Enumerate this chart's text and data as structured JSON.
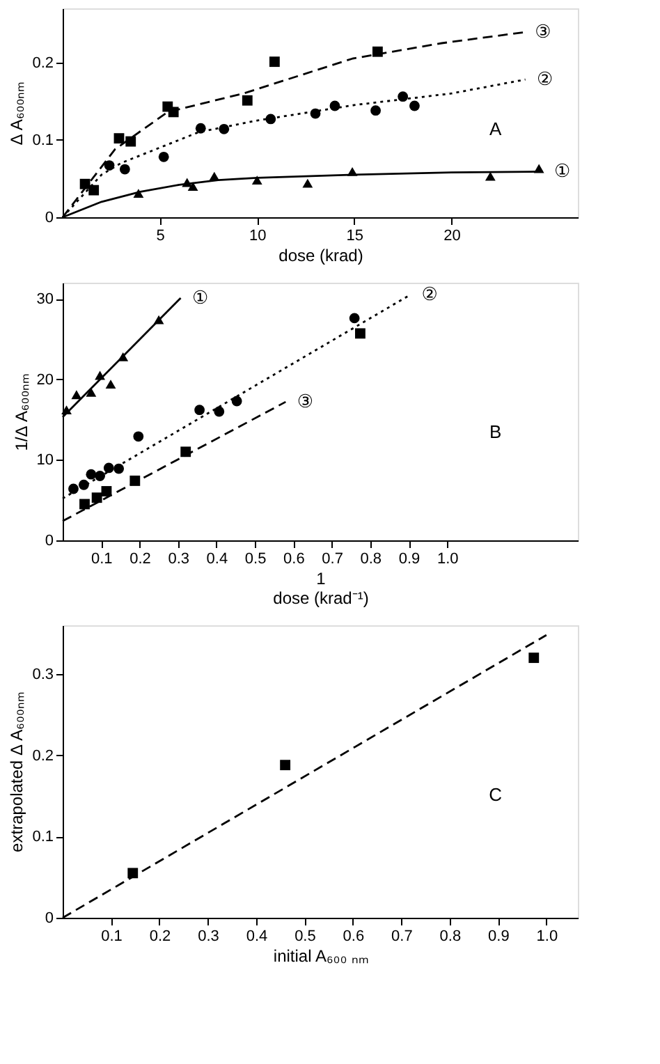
{
  "chart_data": [
    {
      "type": "scatter",
      "xlabel": "dose (krad)",
      "ylabel": "Δ A₆₀₀ₙₘ",
      "xlim": [
        0,
        26.5
      ],
      "ylim": [
        0,
        0.27
      ],
      "xticks": [
        5,
        10,
        15,
        20
      ],
      "yticks": [
        0,
        0.1,
        0.2
      ],
      "grid": false,
      "series": [
        {
          "type": "scatter",
          "marker": "square",
          "color": "#000000",
          "x": [
            1.15,
            1.6,
            2.9,
            3.5,
            5.4,
            5.7,
            9.5,
            10.9,
            16.2
          ],
          "values": [
            0.043,
            0.035,
            0.102,
            0.098,
            0.143,
            0.136,
            0.151,
            0.201,
            0.214
          ]
        },
        {
          "type": "scatter",
          "marker": "circle",
          "color": "#000000",
          "x": [
            2.4,
            3.2,
            5.2,
            7.1,
            8.3,
            10.7,
            13.0,
            14.0,
            16.1,
            17.5,
            18.1
          ],
          "values": [
            0.067,
            0.062,
            0.078,
            0.115,
            0.114,
            0.127,
            0.134,
            0.144,
            0.138,
            0.156,
            0.144
          ]
        },
        {
          "type": "scatter",
          "marker": "triangle",
          "color": "#000000",
          "x": [
            3.9,
            6.4,
            6.7,
            7.8,
            10.0,
            12.6,
            14.9,
            22.0,
            24.5
          ],
          "values": [
            0.031,
            0.045,
            0.04,
            0.053,
            0.048,
            0.044,
            0.059,
            0.053,
            0.063
          ]
        },
        {
          "type": "line",
          "name": "③",
          "line_style": "dashed",
          "color": "#000000",
          "x": [
            0,
            2.7,
            5.4,
            9.3,
            14.9,
            19.5,
            23.7
          ],
          "values": [
            0,
            0.088,
            0.136,
            0.16,
            0.205,
            0.225,
            0.239
          ]
        },
        {
          "type": "line",
          "name": "②",
          "line_style": "dotted",
          "color": "#000000",
          "x": [
            0,
            2,
            3,
            5,
            7,
            10,
            15,
            20,
            23.8
          ],
          "values": [
            0,
            0.055,
            0.07,
            0.09,
            0.11,
            0.125,
            0.145,
            0.16,
            0.178
          ]
        },
        {
          "type": "line",
          "name": "①",
          "line_style": "solid",
          "color": "#000000",
          "x": [
            0,
            2,
            4,
            6,
            8,
            10,
            15,
            20,
            24.7
          ],
          "values": [
            0,
            0.02,
            0.033,
            0.042,
            0.048,
            0.051,
            0.055,
            0.058,
            0.059
          ]
        }
      ],
      "annotations": [
        "A"
      ]
    },
    {
      "type": "scatter",
      "xlabel": "1\ndose (krad⁻¹)",
      "ylabel": "1/Δ A₆₀₀ₙₘ",
      "xlim": [
        0,
        1.34
      ],
      "ylim": [
        0,
        32
      ],
      "xticks": [
        0.1,
        0.2,
        0.3,
        0.4,
        0.5,
        0.6,
        0.7,
        0.8,
        0.9,
        {
          "value": 1.0,
          "label": "1.0"
        }
      ],
      "yticks": [
        0,
        10,
        20,
        30
      ],
      "grid": false,
      "series": [
        {
          "type": "scatter",
          "marker": "triangle",
          "color": "#000000",
          "x": [
            0.01,
            0.036,
            0.074,
            0.097,
            0.125,
            0.157,
            0.25
          ],
          "values": [
            16.2,
            18.1,
            18.4,
            20.5,
            19.4,
            22.8,
            27.4
          ]
        },
        {
          "type": "scatter",
          "marker": "circle",
          "color": "#000000",
          "x": [
            0.028,
            0.055,
            0.074,
            0.097,
            0.12,
            0.146,
            0.197,
            0.356,
            0.407,
            0.453,
            0.759
          ],
          "values": [
            6.4,
            6.9,
            8.2,
            8.0,
            9.0,
            8.9,
            12.9,
            16.2,
            16.0,
            17.3,
            27.6
          ]
        },
        {
          "type": "scatter",
          "marker": "square",
          "color": "#000000",
          "x": [
            0.057,
            0.089,
            0.114,
            0.188,
            0.32,
            0.774
          ],
          "values": [
            4.5,
            5.3,
            6.1,
            7.4,
            11.0,
            25.7
          ]
        },
        {
          "type": "line",
          "name": "①",
          "line_style": "solid",
          "color": "#000000",
          "x": [
            0,
            0.307
          ],
          "values": [
            15.3,
            30.1
          ]
        },
        {
          "type": "line",
          "name": "②",
          "line_style": "dotted",
          "color": "#000000",
          "x": [
            0,
            0.904
          ],
          "values": [
            5.2,
            30.5
          ]
        },
        {
          "type": "line",
          "name": "③",
          "line_style": "dashed",
          "color": "#000000",
          "x": [
            0,
            0.58
          ],
          "values": [
            2.4,
            17.2
          ]
        }
      ],
      "annotations": [
        "B"
      ]
    },
    {
      "type": "scatter",
      "xlabel": "initial A₆₀₀ ₙₘ",
      "ylabel": "extrapolated Δ A₆₀₀ₙₘ",
      "xlim": [
        0,
        1.065
      ],
      "ylim": [
        0,
        0.36
      ],
      "xticks": [
        0.1,
        0.2,
        0.3,
        0.4,
        0.5,
        0.6,
        0.7,
        0.8,
        0.9,
        {
          "value": 1.0,
          "label": "1.0"
        }
      ],
      "yticks": [
        0,
        0.1,
        0.2,
        0.3
      ],
      "grid": false,
      "series": [
        {
          "type": "scatter",
          "marker": "square",
          "color": "#000000",
          "x": [
            0.145,
            0.46,
            0.974
          ],
          "values": [
            0.055,
            0.188,
            0.32
          ]
        },
        {
          "type": "line",
          "line_style": "dashed",
          "color": "#000000",
          "x": [
            0,
            1.0
          ],
          "values": [
            0,
            0.348
          ]
        }
      ],
      "annotations": [
        "C"
      ]
    }
  ]
}
